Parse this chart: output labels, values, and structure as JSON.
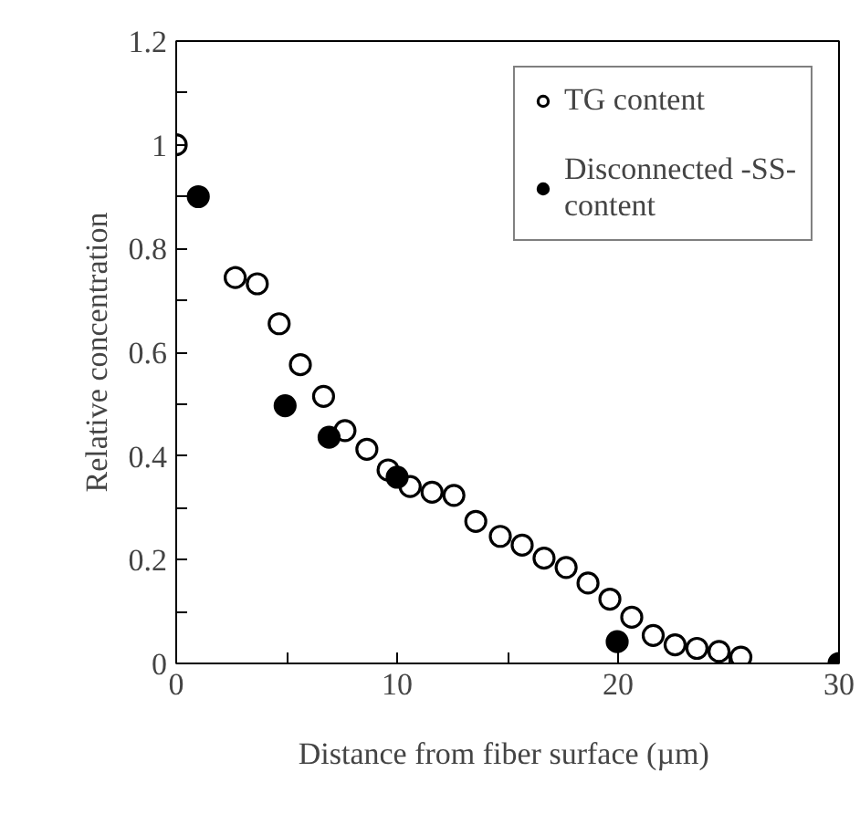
{
  "chart_data": {
    "type": "scatter",
    "xlabel": "Distance from fiber surface  (µm)",
    "ylabel": "Relative concentration",
    "xlim": [
      0,
      30
    ],
    "ylim": [
      0,
      1.2
    ],
    "xticks": [
      0,
      {
        "value": 5,
        "label": null
      },
      10,
      {
        "value": 15,
        "label": null
      },
      20,
      {
        "value": 25,
        "label": null
      },
      30
    ],
    "yticks": [
      0,
      {
        "value": 0.1,
        "label": null
      },
      0.2,
      {
        "value": 0.3,
        "label": null
      },
      0.4,
      {
        "value": 0.5,
        "label": null
      },
      0.6,
      {
        "value": 0.7,
        "label": null
      },
      0.8,
      {
        "value": 0.9,
        "label": null
      },
      1,
      {
        "value": 1.1,
        "label": null
      },
      1.2
    ],
    "grid": false,
    "legend": "top right",
    "marker": "circle",
    "series": [
      {
        "name": "TG content",
        "color": "#ffffff",
        "x": [
          0,
          2.67,
          3.67,
          4.66,
          5.62,
          6.67,
          7.64,
          8.63,
          9.59,
          10.59,
          11.58,
          12.57,
          13.56,
          14.67,
          15.66,
          16.65,
          17.65,
          18.64,
          19.63,
          20.62,
          21.59,
          22.58,
          23.57,
          24.57,
          25.56
        ],
        "values": [
          1.0,
          0.744,
          0.732,
          0.655,
          0.576,
          0.515,
          0.449,
          0.413,
          0.373,
          0.341,
          0.33,
          0.324,
          0.274,
          0.245,
          0.228,
          0.203,
          0.185,
          0.155,
          0.124,
          0.089,
          0.054,
          0.036,
          0.029,
          0.023,
          0.012
        ]
      },
      {
        "name": "Disconnected -SS- content",
        "color": "#000000",
        "x": [
          1.0,
          4.93,
          6.92,
          10.0,
          19.96,
          30
        ],
        "values": [
          0.9,
          0.497,
          0.436,
          0.359,
          0.042,
          0
        ]
      }
    ]
  }
}
